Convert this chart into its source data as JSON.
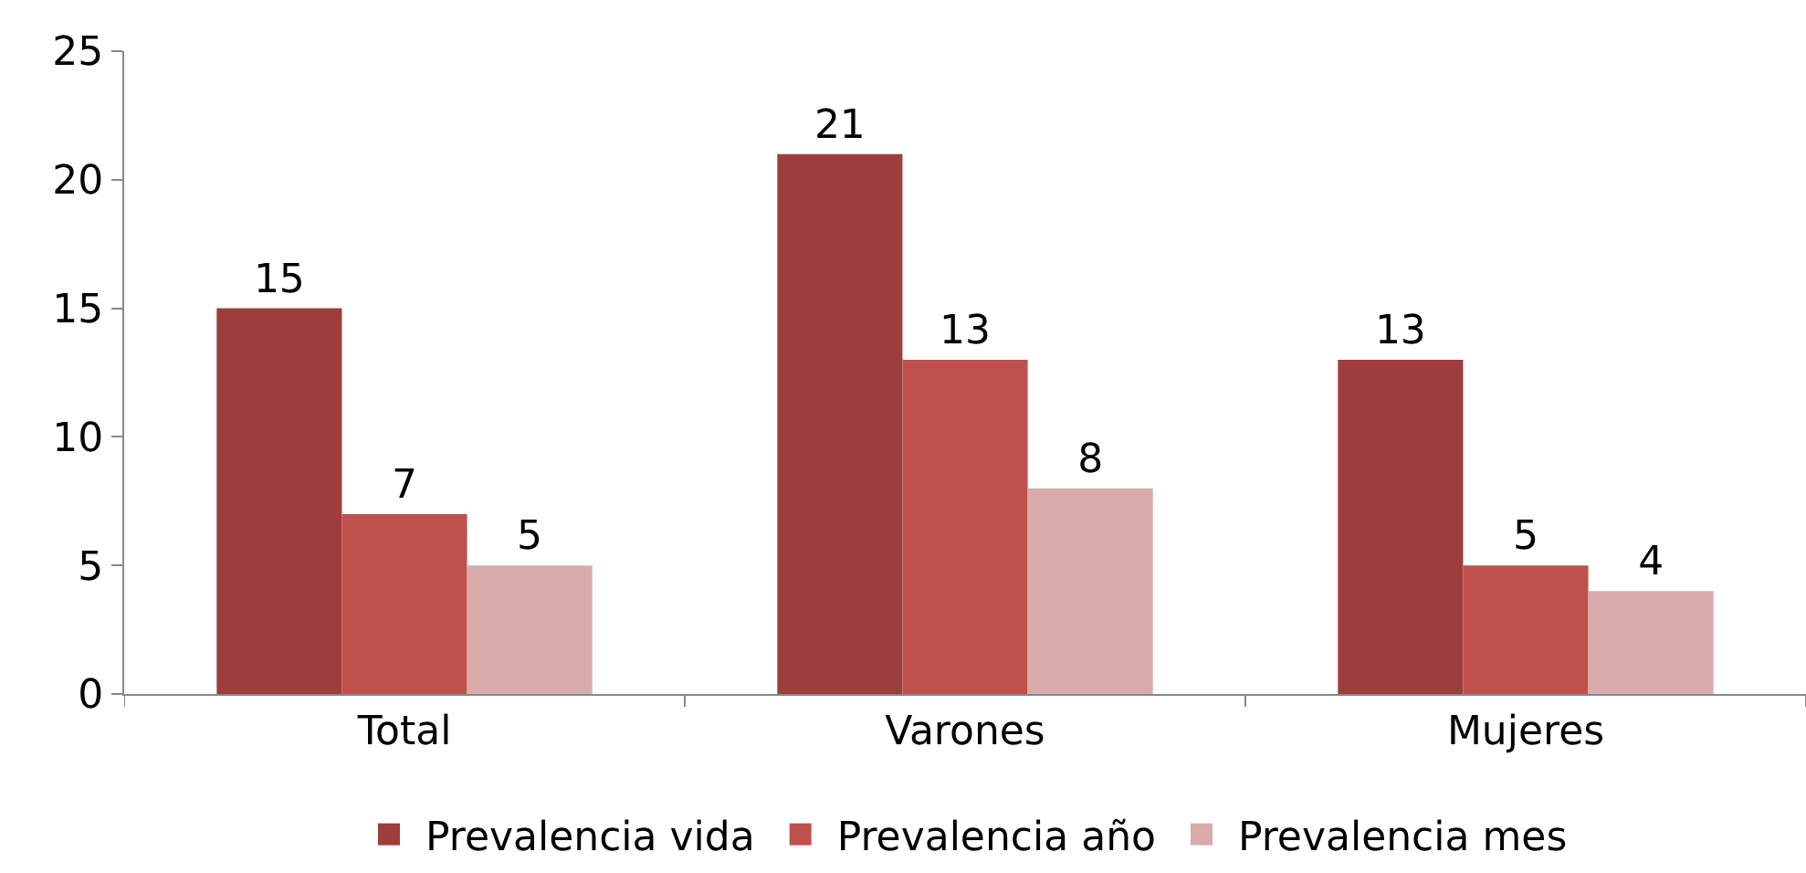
{
  "chart_data": {
    "type": "bar",
    "categories": [
      "Total",
      "Varones",
      "Mujeres"
    ],
    "series": [
      {
        "name": "Prevalencia vida",
        "color": "#9e3e3c",
        "values": [
          15,
          21,
          13
        ]
      },
      {
        "name": "Prevalencia año",
        "color": "#c0504d",
        "values": [
          7,
          13,
          5
        ]
      },
      {
        "name": "Prevalencia mes",
        "color": "#d9aaaa",
        "values": [
          5,
          8,
          4
        ]
      }
    ],
    "ylim": [
      0,
      25
    ],
    "yticks": [
      0,
      5,
      10,
      15,
      20,
      25
    ],
    "legend": "bottom",
    "data_labels": true
  }
}
